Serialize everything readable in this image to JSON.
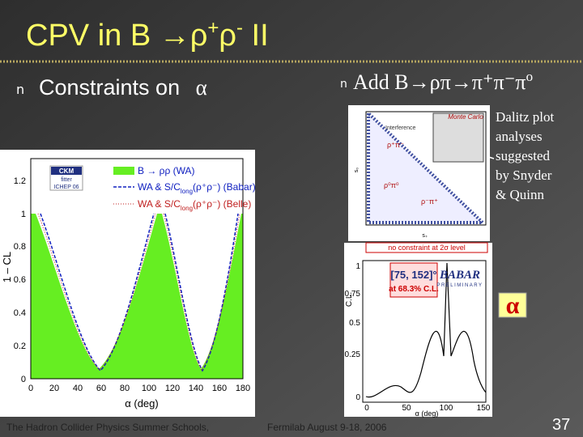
{
  "slide": {
    "title": {
      "text": "CPV in B ",
      "arrow_rho": "→ρ",
      "plus": "+",
      "rho": "ρ",
      "minus": "-",
      "end": " II"
    },
    "bullets": [
      {
        "marker": "n",
        "text": "Constraints on ",
        "symbol": "α"
      },
      {
        "marker": "n",
        "text": "Add B→ρπ→π⁺π⁻π",
        "sup": "o"
      }
    ],
    "note": [
      "Dalitz plot",
      "analyses",
      "suggested",
      "by Snyder",
      "& Quinn"
    ],
    "footer": {
      "left": "The Hadron Collider Physics Summer Schools,",
      "right": "Fermilab August 9-18, 2006"
    },
    "page_number": "37",
    "left_figure": {
      "logo": [
        "CKM",
        "fitter",
        "ICHEP 06"
      ],
      "legend": [
        "B → ρρ (WA)",
        "WA & S/C",
        "long",
        "(ρ⁺ρ⁻) (Babar)",
        "WA & S/C",
        "long",
        "(ρ⁺ρ⁻) (Belle)"
      ],
      "y_label": "1 – CL",
      "x_label": "α  (deg)",
      "yticks": [
        "0",
        "0.2",
        "0.4",
        "0.6",
        "0.8",
        "1",
        "1.2"
      ],
      "xticks": [
        "0",
        "20",
        "40",
        "60",
        "80",
        "100",
        "120",
        "140",
        "160",
        "180"
      ]
    },
    "dalitz_figure": {
      "labels": [
        "Monte Carlo",
        "Interference",
        "ρ⁺π⁻",
        "ρ⁰π⁰",
        "ρ⁻π⁺",
        "s₀",
        "s₊"
      ]
    },
    "right_figure": {
      "banner": "no constraint at 2σ level",
      "interval": "[75, 152]°",
      "interval_note": "at 68.3% C.L.",
      "experiment": "BABAR",
      "status": "PRELIMINARY",
      "symbol": "α",
      "y_label": "C.L.",
      "x_label": "α (deg)",
      "yticks": [
        "0",
        "0.25",
        "0.5",
        "0.75",
        "1"
      ],
      "xticks": [
        "0",
        "50",
        "100",
        "150"
      ]
    }
  }
}
